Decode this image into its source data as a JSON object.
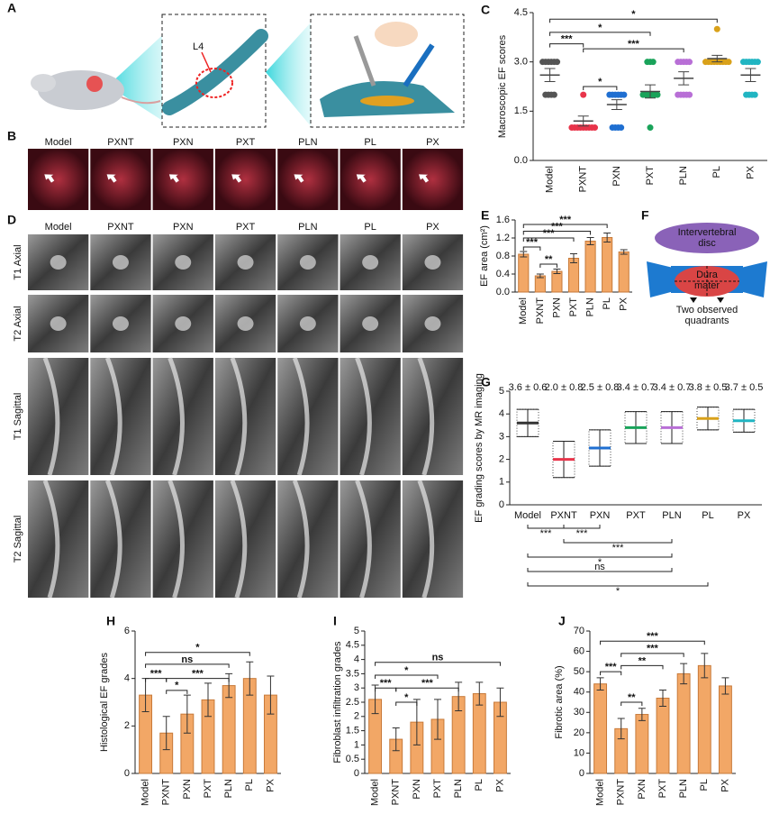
{
  "panel_labels": [
    "A",
    "B",
    "C",
    "D",
    "E",
    "F",
    "G",
    "H",
    "I",
    "J"
  ],
  "illustration": {
    "label": "L4"
  },
  "photo_row": {
    "groups": [
      "Model",
      "PXNT",
      "PXN",
      "PXT",
      "PLN",
      "PL",
      "PX"
    ]
  },
  "mri": {
    "groups": [
      "Model",
      "PXNT",
      "PXN",
      "PXT",
      "PLN",
      "PL",
      "PX"
    ],
    "rows": [
      "T1 Axial",
      "T2 Axial",
      "T1 Sagittal",
      "T2 Sagittal"
    ]
  },
  "diagram": {
    "disc": [
      "Intervertebral",
      "disc"
    ],
    "dura": [
      "Dura",
      "mater"
    ],
    "quadrants": [
      "Two observed",
      "quadrants"
    ]
  },
  "chart_data": [
    {
      "type": "dot",
      "ylabel": "Macroscopic EF scores",
      "categories": [
        "Model",
        "PXNT",
        "PXN",
        "PXT",
        "PLN",
        "PL",
        "PX"
      ],
      "colors": [
        "#555555",
        "#e8344a",
        "#1f6fd1",
        "#1aa35a",
        "#b86fd6",
        "#d9a11a",
        "#21b5c2"
      ],
      "points": [
        [
          3,
          3,
          3,
          3,
          3,
          3,
          2,
          2,
          2,
          2
        ],
        [
          2,
          1,
          1,
          1,
          1,
          1,
          1,
          1,
          1,
          1
        ],
        [
          2,
          2,
          2,
          2,
          2,
          2,
          1,
          1,
          1,
          1
        ],
        [
          3,
          3,
          3,
          2,
          2,
          2,
          2,
          2,
          2,
          1
        ],
        [
          3,
          3,
          3,
          3,
          3,
          2,
          2,
          2,
          2,
          2
        ],
        [
          4,
          3,
          3,
          3,
          3,
          3,
          3,
          3,
          3,
          3
        ],
        [
          3,
          3,
          3,
          3,
          3,
          3,
          2,
          2,
          2,
          2
        ]
      ],
      "means": [
        2.6,
        1.2,
        1.7,
        2.1,
        2.5,
        3.1,
        2.6
      ],
      "errors": [
        0.2,
        0.15,
        0.15,
        0.2,
        0.2,
        0.1,
        0.2
      ],
      "ylim": [
        0,
        4.5
      ],
      "yticks": [
        {
          "value": 0,
          "label": "0.0"
        },
        1.5,
        {
          "value": 3,
          "label": "3.0"
        },
        4.5
      ],
      "annotations": [
        "*",
        "*",
        "***",
        "***",
        "*"
      ]
    },
    {
      "type": "bar",
      "ylabel": "EF area (cm²)",
      "categories": [
        "Model",
        "PXNT",
        "PXN",
        "PXT",
        "PLN",
        "PL",
        "PX"
      ],
      "color": "#f2a766",
      "values": [
        0.84,
        0.36,
        0.46,
        0.75,
        1.13,
        1.21,
        0.89
      ],
      "errors": [
        0.06,
        0.04,
        0.05,
        0.1,
        0.08,
        0.1,
        0.05
      ],
      "ylim": [
        0,
        1.6
      ],
      "yticks": [
        {
          "value": 0,
          "label": "0.0"
        },
        0.4,
        0.8,
        1.2,
        1.6
      ],
      "annotations": [
        "***",
        "***",
        "***",
        "***",
        "**"
      ]
    },
    {
      "type": "range",
      "ylabel": "EF grading scores by MR imaging",
      "categories": [
        "Model",
        "PXNT",
        "PXN",
        "PXT",
        "PLN",
        "PL",
        "PX"
      ],
      "colors": [
        "#333333",
        "#e8344a",
        "#1f6fd1",
        "#1aa35a",
        "#b86fd6",
        "#d9a11a",
        "#21b5c2"
      ],
      "means": [
        3.6,
        2.0,
        2.5,
        3.4,
        3.4,
        3.8,
        3.7
      ],
      "errors": [
        0.6,
        0.8,
        0.8,
        0.7,
        0.7,
        0.5,
        0.5
      ],
      "value_labels": [
        "3.6 ± 0.6",
        "2.0 ± 0.8",
        "2.5 ± 0.8",
        "3.4 ± 0.7",
        "3.4 ± 0.7",
        "3.8 ± 0.5",
        "3.7 ± 0.5"
      ],
      "ylim": [
        0,
        5
      ],
      "yticks": [
        0,
        1,
        2,
        3,
        4,
        5
      ],
      "annotations": [
        "***",
        "***",
        "***",
        "*",
        "ns",
        "*"
      ]
    },
    {
      "type": "bar",
      "ylabel": "Histological EF grades",
      "categories": [
        "Model",
        "PXNT",
        "PXN",
        "PXT",
        "PLN",
        "PL",
        "PX"
      ],
      "color": "#f2a766",
      "values": [
        3.3,
        1.7,
        2.5,
        3.1,
        3.7,
        4.0,
        3.3
      ],
      "errors": [
        0.7,
        0.7,
        0.8,
        0.7,
        0.5,
        0.7,
        0.8
      ],
      "ylim": [
        0,
        6
      ],
      "yticks": [
        0,
        2,
        4,
        6
      ],
      "annotations": [
        "*",
        "ns",
        "***",
        "***",
        "*"
      ]
    },
    {
      "type": "bar",
      "ylabel": "Fibroblast infiltration grades",
      "categories": [
        "Model",
        "PXNT",
        "PXN",
        "PXT",
        "PLN",
        "PL",
        "PX"
      ],
      "color": "#f2a766",
      "values": [
        2.6,
        1.2,
        1.8,
        1.9,
        2.7,
        2.8,
        2.5
      ],
      "errors": [
        0.5,
        0.4,
        0.8,
        0.7,
        0.5,
        0.4,
        0.5
      ],
      "ylim": [
        0,
        5
      ],
      "yticks": [
        0,
        0.5,
        1,
        1.5,
        2,
        2.5,
        3,
        3.5,
        4,
        4.5,
        5
      ],
      "annotations": [
        "ns",
        "*",
        "***",
        "***",
        "*"
      ]
    },
    {
      "type": "bar",
      "ylabel": "Fibrotic area (%)",
      "categories": [
        "Model",
        "PXNT",
        "PXN",
        "PXT",
        "PLN",
        "PL",
        "PX"
      ],
      "color": "#f2a766",
      "values": [
        44,
        22,
        29,
        37,
        49,
        53,
        43
      ],
      "errors": [
        3,
        5,
        3,
        4,
        5,
        6,
        4
      ],
      "ylim": [
        0,
        70
      ],
      "yticks": [
        0,
        10,
        20,
        30,
        40,
        50,
        60,
        70
      ],
      "annotations": [
        "***",
        "***",
        "**",
        "***",
        "**"
      ]
    }
  ]
}
